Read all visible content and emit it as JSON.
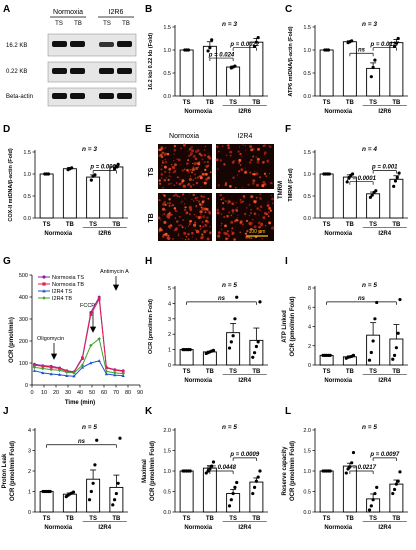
{
  "panels": {
    "A": {
      "label": "A",
      "col_normoxia": "Normoxia",
      "col_i2r6": "I2R6",
      "lanes": [
        "TS",
        "TB",
        "TS",
        "TB"
      ],
      "rows": [
        "16.2 KB",
        "0.22 KB",
        "Beta-actin"
      ]
    },
    "B": {
      "label": "B",
      "n": "n = 3",
      "p1": "p = 0.024",
      "p2": "p = 0.0022",
      "ylabel": "16.2 kb/ 0.22 kb (Fold)",
      "ticks": [
        "0.0",
        "0.5",
        "1.0",
        "1.5"
      ],
      "cats": [
        "TS",
        "TB",
        "TS",
        "TB"
      ],
      "groups": [
        "Normoxia",
        "I2R6"
      ]
    },
    "C": {
      "label": "C",
      "n": "n = 3",
      "ns": "ns",
      "p1": "p = 0.0117",
      "ylabel": "ATP6 mtDNA/β-actin (Fold)",
      "ticks": [
        "0.0",
        "0.5",
        "1.0",
        "1.5"
      ],
      "cats": [
        "TS",
        "TB",
        "TS",
        "TB"
      ],
      "groups": [
        "Normoxia",
        "I2R6"
      ]
    },
    "D": {
      "label": "D",
      "n": "n = 3",
      "p1": "p = 0.0009",
      "ylabel": "COX-II mtDNA/β-actin (Fold)",
      "ticks": [
        "0.0",
        "0.5",
        "1.0",
        "1.5"
      ],
      "cats": [
        "TS",
        "TB",
        "TS",
        "TB"
      ],
      "groups": [
        "Normoxia",
        "I2R6"
      ]
    },
    "E": {
      "label": "E",
      "col_normoxia": "Normoxia",
      "col_i2r4": "I2R4",
      "row_ts": "TS",
      "row_tb": "TB",
      "stain": "TMRM",
      "scale": "100 µm"
    },
    "F": {
      "label": "F",
      "n": "n = 4",
      "p1": "p = 0.0001",
      "p2": "p = 0.001",
      "ylabel": "TMRM (Fold)",
      "ticks": [
        "0.0",
        "0.5",
        "1.0",
        "1.5"
      ],
      "cats": [
        "TS",
        "TB",
        "TS",
        "TB"
      ],
      "groups": [
        "Normoxia",
        "I2R4"
      ]
    },
    "G": {
      "label": "G",
      "ylabel": "OCR (pmol/min)",
      "xlabel": "Time (min)",
      "yticks": [
        "0",
        "100",
        "200",
        "300",
        "400",
        "500"
      ],
      "xticks": [
        "0",
        "10",
        "20",
        "30",
        "40",
        "50",
        "60",
        "70",
        "80",
        "90"
      ],
      "ann_oligo": "Oligomycin",
      "ann_fccp": "FCCP",
      "ann_anti": "Antimycin A",
      "legend": [
        "Normoxia TS",
        "Normoxia TB",
        "I2R4 TS",
        "I2R4 TB"
      ]
    },
    "H": {
      "label": "H",
      "n": "n = 5",
      "ns": "ns",
      "ylabel": "OCR (pmol/min Fold)",
      "ticks": [
        "0",
        "1",
        "2",
        "3",
        "4",
        "5"
      ],
      "cats": [
        "TS",
        "TB",
        "TS",
        "TB"
      ],
      "groups": [
        "Normoxia",
        "I2R4"
      ]
    },
    "I": {
      "label": "I",
      "n": "n = 5",
      "ns": "ns",
      "ylabel1": "ATP Linked",
      "ylabel2": "OCR (pmol/min Fold)",
      "ticks": [
        "0",
        "2",
        "4",
        "6",
        "8"
      ],
      "cats": [
        "TS",
        "TB",
        "TS",
        "TB"
      ],
      "groups": [
        "Normoxia",
        "I2R4"
      ]
    },
    "J": {
      "label": "J",
      "n": "n = 5",
      "ns": "ns",
      "ylabel1": "Proton Leak",
      "ylabel2": "OCR (pmol/min Fold)",
      "ticks": [
        "0",
        "1",
        "2",
        "3",
        "4"
      ],
      "cats": [
        "TS",
        "TB",
        "TS",
        "TB"
      ],
      "groups": [
        "Normoxia",
        "I2R4"
      ]
    },
    "K": {
      "label": "K",
      "n": "n = 5",
      "p1": "p = 0.0448",
      "p2": "p = 0.0009",
      "ylabel1": "Maximal",
      "ylabel2": "OCR (pmol/min Fold)",
      "ticks": [
        "0.0",
        "0.5",
        "1.0",
        "1.5",
        "2.0"
      ],
      "cats": [
        "TS",
        "TB",
        "TS",
        "TB"
      ],
      "groups": [
        "Normoxia",
        "I2R4"
      ]
    },
    "L": {
      "label": "L",
      "n": "n = 5",
      "p1": "p = 0.0217",
      "p2": "p = 0.0097",
      "ylabel1": "Reserve capacity",
      "ylabel2": "OCR (pmol/min Fold)",
      "ticks": [
        "0.0",
        "0.5",
        "1.0",
        "1.5",
        "2.0"
      ],
      "cats": [
        "TS",
        "TB",
        "TS",
        "TB"
      ],
      "groups": [
        "Normoxia",
        "I2R4"
      ]
    }
  },
  "chart_data": [
    {
      "panel": "B",
      "type": "bar",
      "categories": [
        "Normoxia TS",
        "Normoxia TB",
        "I2R6 TS",
        "I2R6 TB"
      ],
      "values": [
        1.0,
        1.08,
        0.63,
        1.17
      ],
      "errors": [
        0.0,
        0.1,
        0.02,
        0.08
      ],
      "ylim": [
        0,
        1.5
      ],
      "ylabel": "16.2 kb/ 0.22 kb (Fold)",
      "points": [
        [
          1.0,
          1.0,
          1.0
        ],
        [
          0.98,
          1.05,
          1.22
        ],
        [
          0.61,
          0.63,
          0.65
        ],
        [
          1.08,
          1.17,
          1.27
        ]
      ]
    },
    {
      "panel": "C",
      "type": "bar",
      "categories": [
        "Normoxia TS",
        "Normoxia TB",
        "I2R6 TS",
        "I2R6 TB"
      ],
      "values": [
        1.0,
        1.18,
        0.6,
        1.16
      ],
      "errors": [
        0.0,
        0.02,
        0.12,
        0.07
      ],
      "ylim": [
        0,
        1.5
      ],
      "ylabel": "ATP6 mtDNA/β-actin (Fold)",
      "points": [
        [
          1.0,
          1.0,
          1.0
        ],
        [
          1.16,
          1.18,
          1.2
        ],
        [
          0.42,
          0.62,
          0.78
        ],
        [
          1.08,
          1.15,
          1.25
        ]
      ]
    },
    {
      "panel": "D",
      "type": "bar",
      "categories": [
        "Normoxia TS",
        "Normoxia TB",
        "I2R6 TS",
        "I2R6 TB"
      ],
      "values": [
        1.0,
        1.12,
        0.93,
        1.16
      ],
      "errors": [
        0.0,
        0.03,
        0.05,
        0.04
      ],
      "ylim": [
        0,
        1.5
      ],
      "ylabel": "COX-II mtDNA/β-actin (Fold)",
      "points": [
        [
          1.0,
          1.0,
          1.0
        ],
        [
          1.1,
          1.12,
          1.14
        ],
        [
          0.86,
          0.95,
          0.98
        ],
        [
          1.12,
          1.16,
          1.22
        ]
      ]
    },
    {
      "panel": "F",
      "type": "bar",
      "categories": [
        "Normoxia TS",
        "Normoxia TB",
        "I2R4 TS",
        "I2R4 TB"
      ],
      "values": [
        1.0,
        0.93,
        0.55,
        0.88
      ],
      "errors": [
        0.0,
        0.05,
        0.04,
        0.08
      ],
      "ylim": [
        0,
        1.5
      ],
      "ylabel": "TMRM (Fold)",
      "points": [
        [
          1.0,
          1.0,
          1.0,
          1.0
        ],
        [
          0.82,
          0.92,
          0.97,
          1.0
        ],
        [
          0.47,
          0.52,
          0.58,
          0.62
        ],
        [
          0.72,
          0.84,
          0.92,
          1.02
        ]
      ]
    },
    {
      "panel": "G",
      "type": "line",
      "title": "",
      "xlabel": "Time (min)",
      "ylabel": "OCR (pmol/min)",
      "xlim": [
        0,
        90
      ],
      "ylim": [
        0,
        500
      ],
      "x": [
        2,
        9,
        16,
        23,
        29,
        35,
        42,
        49,
        56,
        62,
        69,
        76
      ],
      "series": [
        {
          "name": "Normoxia TS",
          "color": "#8B1FA8",
          "values": [
            95,
            88,
            85,
            78,
            65,
            60,
            125,
            330,
            400,
            80,
            70,
            65
          ]
        },
        {
          "name": "Normoxia TB",
          "color": "#E02050",
          "values": [
            90,
            85,
            80,
            75,
            62,
            58,
            120,
            320,
            390,
            78,
            68,
            62
          ]
        },
        {
          "name": "I2R4 TS",
          "color": "#2050D0",
          "values": [
            65,
            55,
            50,
            47,
            42,
            40,
            80,
            100,
            110,
            50,
            45,
            42
          ]
        },
        {
          "name": "I2R4 TB",
          "color": "#40A030",
          "values": [
            80,
            75,
            70,
            67,
            58,
            55,
            90,
            180,
            210,
            62,
            55,
            52
          ]
        }
      ]
    },
    {
      "panel": "H",
      "type": "bar",
      "categories": [
        "Normoxia TS",
        "Normoxia TB",
        "I2R4 TS",
        "I2R4 TB"
      ],
      "values": [
        1.0,
        0.85,
        2.1,
        1.6
      ],
      "errors": [
        0.0,
        0.05,
        0.6,
        0.8
      ],
      "ylim": [
        0,
        5
      ],
      "ylabel": "OCR (pmol/min Fold)",
      "points": [
        [
          1,
          1,
          1,
          1,
          1
        ],
        [
          0.75,
          0.8,
          0.85,
          0.9,
          0.95
        ],
        [
          1.1,
          1.5,
          1.9,
          3.0,
          4.4
        ],
        [
          0.5,
          0.8,
          1.2,
          1.5,
          4.1
        ]
      ]
    },
    {
      "panel": "I",
      "type": "bar",
      "categories": [
        "Normoxia TS",
        "Normoxia TB",
        "I2R4 TS",
        "I2R4 TB"
      ],
      "values": [
        1.0,
        0.85,
        3.1,
        2.7
      ],
      "errors": [
        0.0,
        0.1,
        1.3,
        1.5
      ],
      "ylim": [
        0,
        8
      ],
      "ylabel": "ATP Linked OCR (pmol/min Fold)",
      "points": [
        [
          1,
          1,
          1,
          1,
          1
        ],
        [
          0.7,
          0.8,
          0.85,
          0.9,
          1.0
        ],
        [
          0.5,
          1.3,
          2.5,
          4.8,
          6.5
        ],
        [
          0.6,
          1.0,
          1.8,
          3.3,
          6.8
        ]
      ]
    },
    {
      "panel": "J",
      "type": "bar",
      "categories": [
        "Normoxia TS",
        "Normoxia TB",
        "I2R4 TS",
        "I2R4 TB"
      ],
      "values": [
        1.0,
        0.87,
        1.6,
        1.2
      ],
      "errors": [
        0.0,
        0.06,
        0.45,
        0.6
      ],
      "ylim": [
        0,
        4
      ],
      "ylabel": "Proton Leak OCR (pmol/min Fold)",
      "points": [
        [
          1,
          1,
          1,
          1,
          1
        ],
        [
          0.75,
          0.82,
          0.88,
          0.92,
          0.97
        ],
        [
          0.6,
          1.0,
          1.4,
          2.3,
          3.5
        ],
        [
          0.35,
          0.6,
          0.9,
          1.4,
          3.6
        ]
      ]
    },
    {
      "panel": "K",
      "type": "bar",
      "categories": [
        "Normoxia TS",
        "Normoxia TB",
        "I2R4 TS",
        "I2R4 TB"
      ],
      "values": [
        1.0,
        1.07,
        0.45,
        0.73
      ],
      "errors": [
        0.0,
        0.06,
        0.1,
        0.1
      ],
      "ylim": [
        0,
        2
      ],
      "ylabel": "Maximal OCR (pmol/min Fold)",
      "points": [
        [
          1,
          1,
          1,
          1,
          1
        ],
        [
          0.95,
          1.0,
          1.05,
          1.12,
          1.22
        ],
        [
          0.15,
          0.3,
          0.45,
          0.6,
          0.72
        ],
        [
          0.45,
          0.6,
          0.75,
          0.85,
          1.0
        ]
      ]
    },
    {
      "panel": "L",
      "type": "bar",
      "categories": [
        "Normoxia TS",
        "Normoxia TB",
        "I2R4 TS",
        "I2R4 TB"
      ],
      "values": [
        1.0,
        1.12,
        0.32,
        0.68
      ],
      "errors": [
        0.0,
        0.07,
        0.12,
        0.1
      ],
      "ylim": [
        0,
        2
      ],
      "ylabel": "Reserve capacity OCR (pmol/min Fold)",
      "points": [
        [
          1,
          1,
          1,
          1,
          1
        ],
        [
          0.95,
          1.05,
          1.1,
          1.2,
          1.45
        ],
        [
          0.05,
          0.15,
          0.3,
          0.45,
          0.6
        ],
        [
          0.45,
          0.55,
          0.68,
          0.75,
          0.98
        ]
      ]
    }
  ]
}
